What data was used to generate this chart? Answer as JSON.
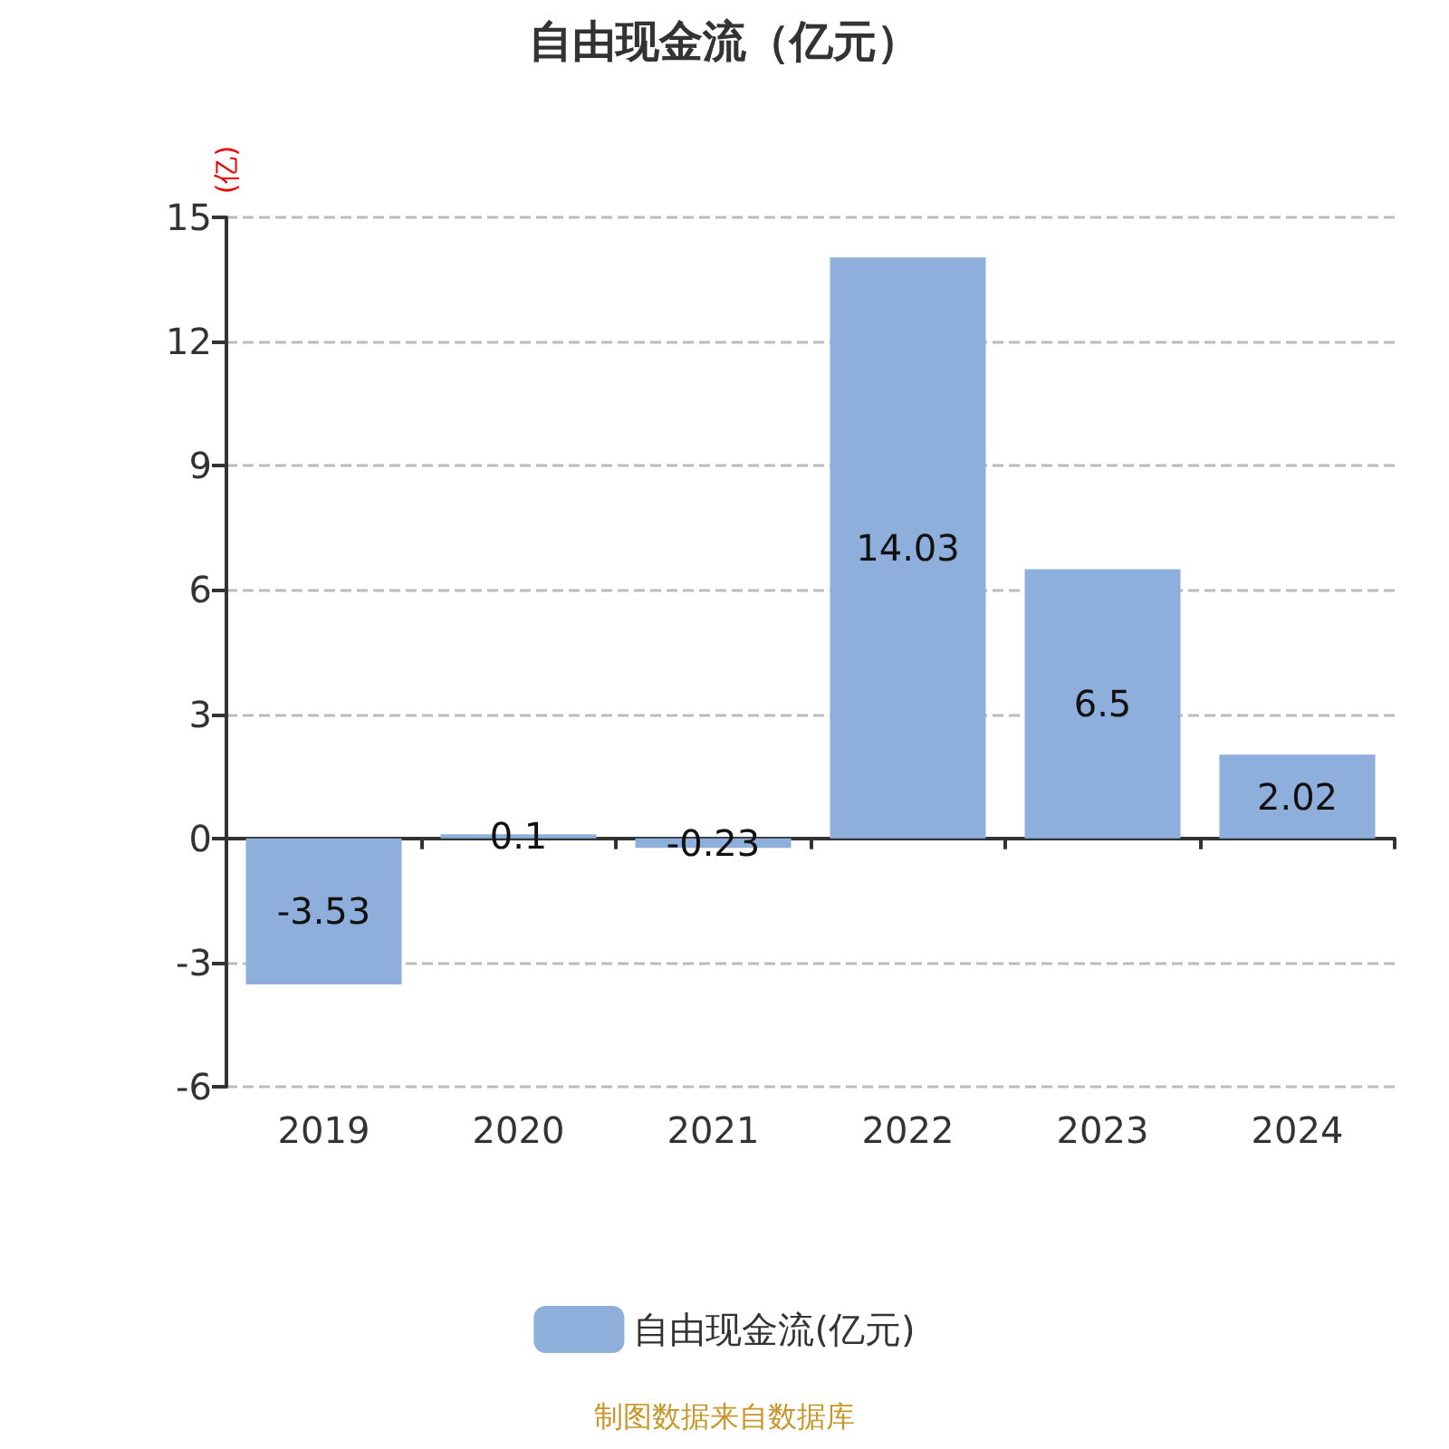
{
  "chart_data": {
    "type": "bar",
    "title": "自由现金流（亿元）",
    "ylabel": "(亿)",
    "categories": [
      "2019",
      "2020",
      "2021",
      "2022",
      "2023",
      "2024"
    ],
    "series": [
      {
        "name": "自由现金流(亿元)",
        "color": "#8eaedb",
        "values": [
          -3.53,
          0.1,
          -0.23,
          14.03,
          6.5,
          2.02
        ]
      }
    ],
    "ylim": [
      -6,
      15
    ],
    "yticks": [
      -6,
      -3,
      0,
      3,
      6,
      9,
      12,
      15
    ],
    "grid": "y",
    "legend": "bottom",
    "data_labels": true,
    "annotations": [
      "制图数据来自数据库"
    ]
  }
}
